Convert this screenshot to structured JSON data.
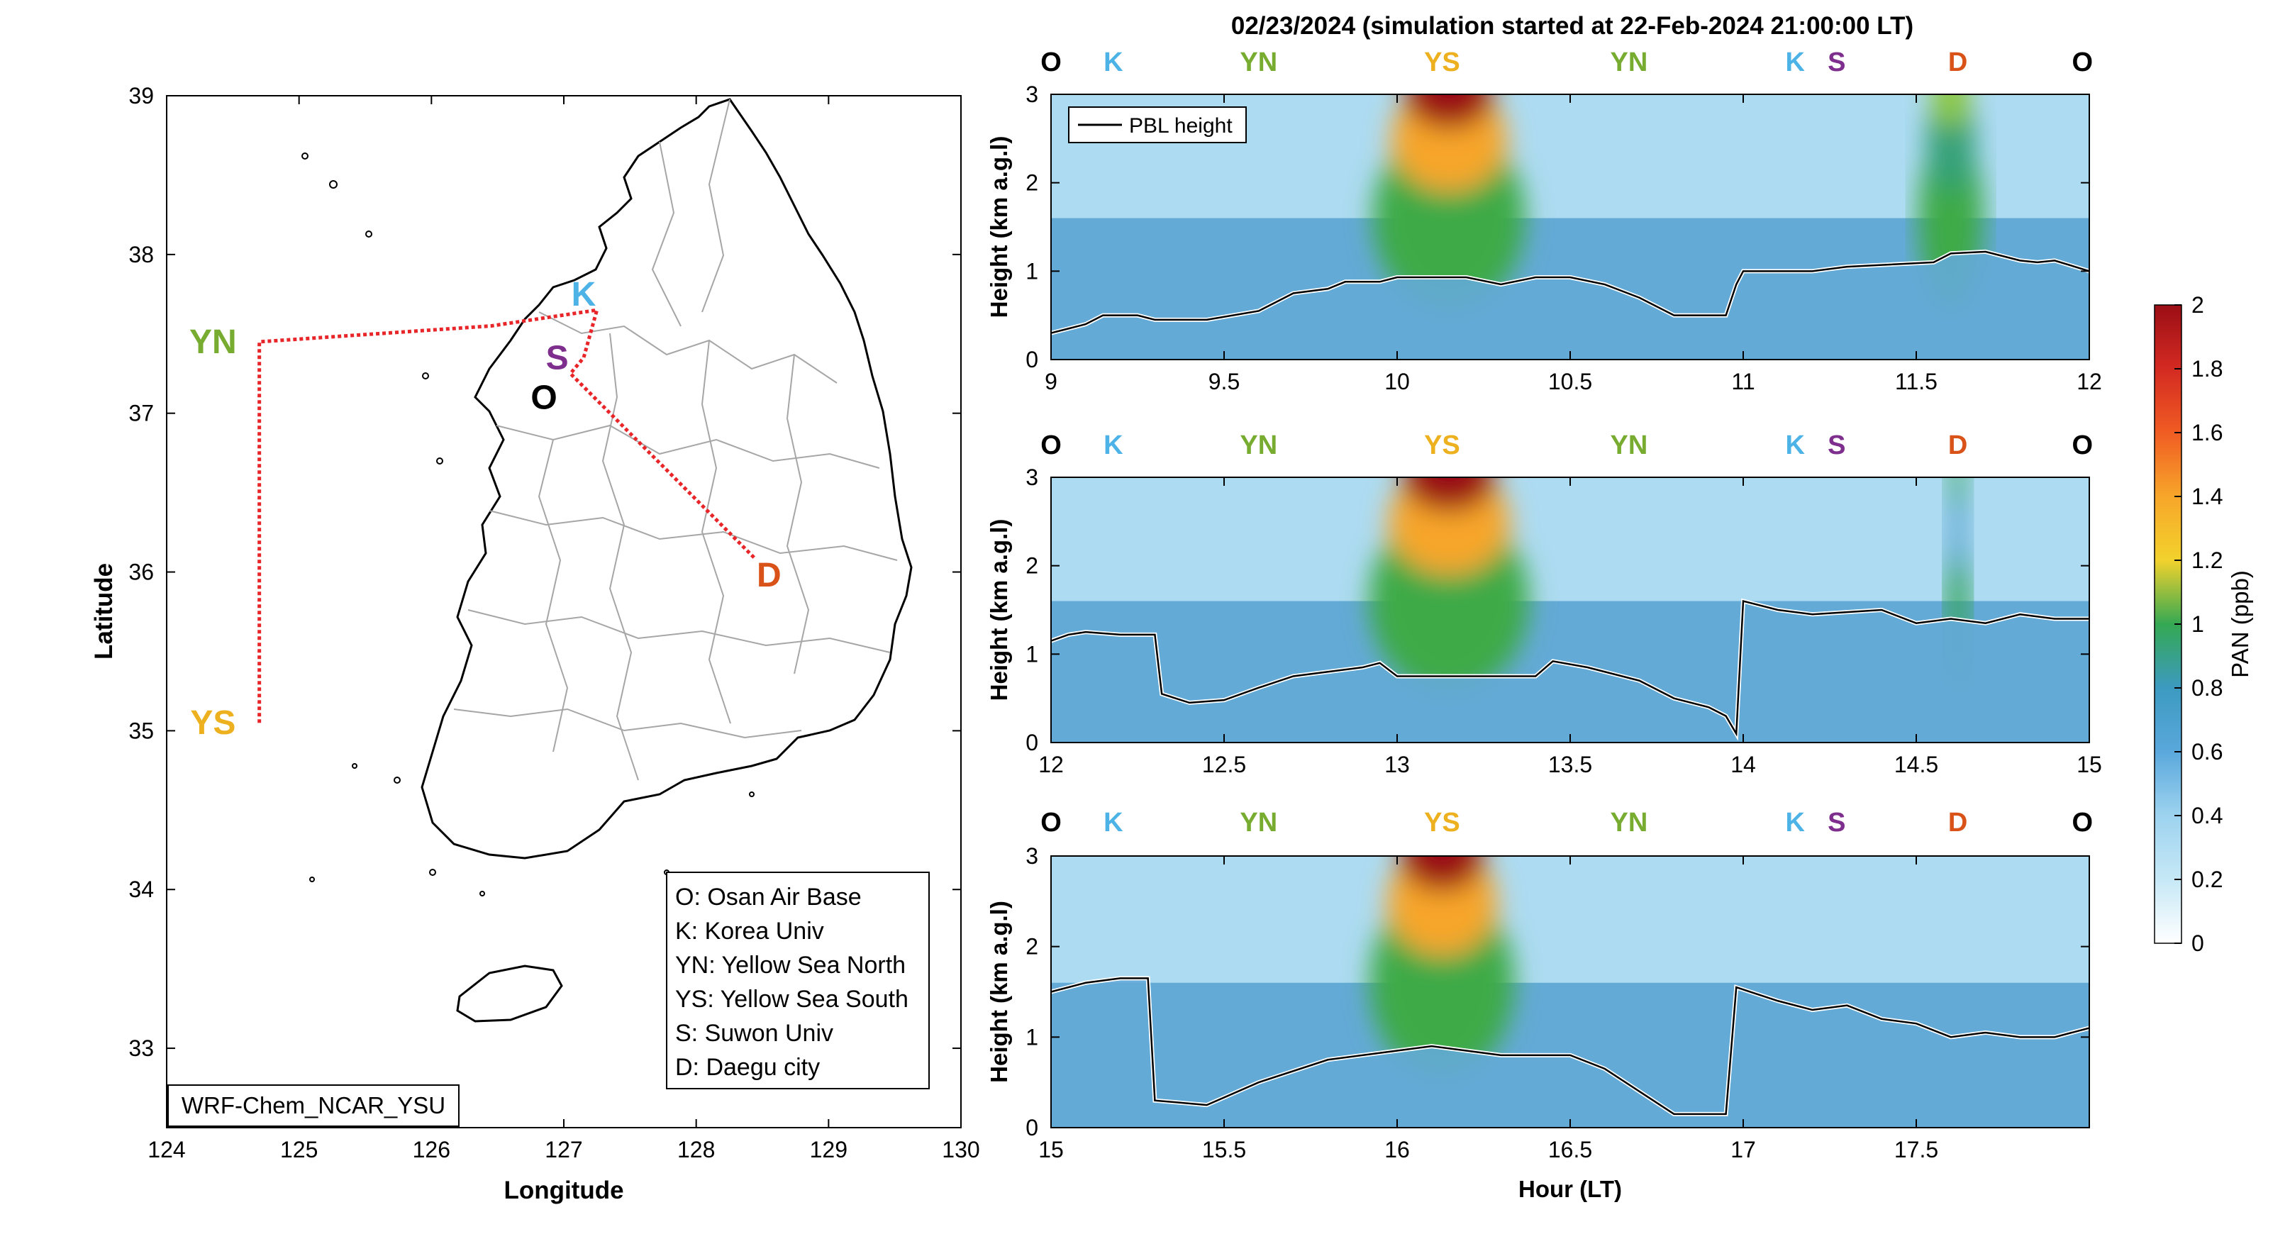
{
  "figure": {
    "title": "02/23/2024 (simulation started at 22-Feb-2024 21:00:00 LT)"
  },
  "map": {
    "xlabel": "Longitude",
    "ylabel": "Latitude",
    "xlim": [
      124,
      130
    ],
    "ylim": [
      32.5,
      39
    ],
    "xticks": [
      "124",
      "125",
      "126",
      "127",
      "128",
      "129",
      "130"
    ],
    "yticks": [
      "33",
      "34",
      "35",
      "36",
      "37",
      "38",
      "39"
    ],
    "model_label": "WRF-Chem_NCAR_YSU",
    "route_color": "#e8262a",
    "route": [
      [
        124.7,
        35.05
      ],
      [
        124.7,
        37.45
      ],
      [
        126.45,
        37.55
      ],
      [
        127.25,
        37.65
      ],
      [
        127.15,
        37.35
      ],
      [
        127.05,
        37.25
      ],
      [
        128.45,
        36.08
      ]
    ],
    "sites": [
      {
        "code": "O",
        "lon": 126.85,
        "lat": 37.1,
        "color": "#000000"
      },
      {
        "code": "K",
        "lon": 127.15,
        "lat": 37.75,
        "color": "#4db3e6"
      },
      {
        "code": "S",
        "lon": 126.95,
        "lat": 37.35,
        "color": "#7e2f8e"
      },
      {
        "code": "YN",
        "lon": 124.35,
        "lat": 37.45,
        "color": "#77ac30"
      },
      {
        "code": "YS",
        "lon": 124.35,
        "lat": 35.05,
        "color": "#edb120"
      },
      {
        "code": "D",
        "lon": 128.55,
        "lat": 35.98,
        "color": "#d95319"
      }
    ],
    "legend": [
      "O: Osan Air Base",
      "K: Korea Univ",
      "YN: Yellow Sea North",
      "YS: Yellow Sea South",
      "S: Suwon Univ",
      "D: Daegu city"
    ]
  },
  "chart_data": [
    {
      "type": "heatmap",
      "xlim": [
        9,
        12
      ],
      "ylim": [
        0,
        3
      ],
      "xticks": [
        "9",
        "9.5",
        "10",
        "10.5",
        "11",
        "11.5",
        "12"
      ],
      "yticks": [
        "0",
        "1",
        "2",
        "3"
      ],
      "ylabel": "Height (km a.g.l)",
      "legend": {
        "label": "PBL height",
        "position": "top-left"
      },
      "top_labels": [
        {
          "code": "O",
          "x": 9.0,
          "color": "#000000"
        },
        {
          "code": "K",
          "x": 9.18,
          "color": "#4db3e6"
        },
        {
          "code": "YN",
          "x": 9.6,
          "color": "#77ac30"
        },
        {
          "code": "YS",
          "x": 10.13,
          "color": "#edb120"
        },
        {
          "code": "YN",
          "x": 10.67,
          "color": "#77ac30"
        },
        {
          "code": "K",
          "x": 11.15,
          "color": "#4db3e6"
        },
        {
          "code": "S",
          "x": 11.27,
          "color": "#7e2f8e"
        },
        {
          "code": "D",
          "x": 11.62,
          "color": "#d95319"
        },
        {
          "code": "O",
          "x": 11.98,
          "color": "#000000"
        }
      ],
      "pbl": [
        [
          9.0,
          0.3
        ],
        [
          9.05,
          0.35
        ],
        [
          9.1,
          0.4
        ],
        [
          9.15,
          0.5
        ],
        [
          9.25,
          0.5
        ],
        [
          9.3,
          0.45
        ],
        [
          9.45,
          0.45
        ],
        [
          9.6,
          0.55
        ],
        [
          9.65,
          0.65
        ],
        [
          9.7,
          0.75
        ],
        [
          9.8,
          0.8
        ],
        [
          9.85,
          0.88
        ],
        [
          9.95,
          0.88
        ],
        [
          10.0,
          0.93
        ],
        [
          10.2,
          0.93
        ],
        [
          10.3,
          0.85
        ],
        [
          10.4,
          0.93
        ],
        [
          10.5,
          0.93
        ],
        [
          10.6,
          0.85
        ],
        [
          10.7,
          0.7
        ],
        [
          10.8,
          0.5
        ],
        [
          10.95,
          0.5
        ],
        [
          10.98,
          0.85
        ],
        [
          11.0,
          1.0
        ],
        [
          11.2,
          1.0
        ],
        [
          11.3,
          1.05
        ],
        [
          11.4,
          1.07
        ],
        [
          11.55,
          1.1
        ],
        [
          11.6,
          1.2
        ],
        [
          11.7,
          1.22
        ],
        [
          11.8,
          1.12
        ],
        [
          11.85,
          1.1
        ],
        [
          11.9,
          1.12
        ],
        [
          12.0,
          1.0
        ]
      ],
      "hotspots": [
        {
          "x": 10.15,
          "w": 0.4,
          "peak": 2.0
        },
        {
          "x": 11.6,
          "w": 0.17,
          "peak": 1.0
        }
      ]
    },
    {
      "type": "heatmap",
      "xlim": [
        12,
        15
      ],
      "ylim": [
        0,
        3
      ],
      "xticks": [
        "12",
        "12.5",
        "13",
        "13.5",
        "14",
        "14.5",
        "15"
      ],
      "yticks": [
        "0",
        "1",
        "2",
        "3"
      ],
      "ylabel": "Height (km a.g.l)",
      "top_labels": [
        {
          "code": "O",
          "x": 12.0,
          "color": "#000000"
        },
        {
          "code": "K",
          "x": 12.18,
          "color": "#4db3e6"
        },
        {
          "code": "YN",
          "x": 12.6,
          "color": "#77ac30"
        },
        {
          "code": "YS",
          "x": 13.13,
          "color": "#edb120"
        },
        {
          "code": "YN",
          "x": 13.67,
          "color": "#77ac30"
        },
        {
          "code": "K",
          "x": 14.15,
          "color": "#4db3e6"
        },
        {
          "code": "S",
          "x": 14.27,
          "color": "#7e2f8e"
        },
        {
          "code": "D",
          "x": 14.62,
          "color": "#d95319"
        },
        {
          "code": "O",
          "x": 14.98,
          "color": "#000000"
        }
      ],
      "pbl": [
        [
          12.0,
          1.15
        ],
        [
          12.05,
          1.22
        ],
        [
          12.1,
          1.25
        ],
        [
          12.2,
          1.22
        ],
        [
          12.3,
          1.22
        ],
        [
          12.32,
          0.55
        ],
        [
          12.4,
          0.45
        ],
        [
          12.5,
          0.48
        ],
        [
          12.6,
          0.62
        ],
        [
          12.7,
          0.75
        ],
        [
          12.8,
          0.8
        ],
        [
          12.9,
          0.85
        ],
        [
          12.95,
          0.9
        ],
        [
          13.0,
          0.75
        ],
        [
          13.4,
          0.75
        ],
        [
          13.45,
          0.92
        ],
        [
          13.55,
          0.85
        ],
        [
          13.7,
          0.7
        ],
        [
          13.8,
          0.5
        ],
        [
          13.9,
          0.4
        ],
        [
          13.95,
          0.3
        ],
        [
          13.98,
          0.1
        ],
        [
          14.0,
          1.6
        ],
        [
          14.1,
          1.5
        ],
        [
          14.2,
          1.45
        ],
        [
          14.4,
          1.5
        ],
        [
          14.5,
          1.35
        ],
        [
          14.6,
          1.4
        ],
        [
          14.7,
          1.35
        ],
        [
          14.8,
          1.45
        ],
        [
          14.9,
          1.4
        ],
        [
          15.0,
          1.4
        ]
      ],
      "hotspots": [
        {
          "x": 13.15,
          "w": 0.42,
          "peak": 2.0
        },
        {
          "x": 14.62,
          "w": 0.06,
          "peak": 0.75
        }
      ]
    },
    {
      "type": "heatmap",
      "xlim": [
        15,
        18
      ],
      "ylim": [
        0,
        3
      ],
      "xticks": [
        "15",
        "15.5",
        "16",
        "16.5",
        "17",
        "17.5"
      ],
      "yticks": [
        "0",
        "1",
        "2",
        "3"
      ],
      "xlabel": "Hour (LT)",
      "ylabel": "Height (km a.g.l)",
      "top_labels": [
        {
          "code": "O",
          "x": 15.0,
          "color": "#000000"
        },
        {
          "code": "K",
          "x": 15.18,
          "color": "#4db3e6"
        },
        {
          "code": "YN",
          "x": 15.6,
          "color": "#77ac30"
        },
        {
          "code": "YS",
          "x": 16.13,
          "color": "#edb120"
        },
        {
          "code": "YN",
          "x": 16.67,
          "color": "#77ac30"
        },
        {
          "code": "K",
          "x": 17.15,
          "color": "#4db3e6"
        },
        {
          "code": "S",
          "x": 17.27,
          "color": "#7e2f8e"
        },
        {
          "code": "D",
          "x": 17.62,
          "color": "#d95319"
        },
        {
          "code": "O",
          "x": 17.98,
          "color": "#000000"
        }
      ],
      "pbl": [
        [
          15.0,
          1.5
        ],
        [
          15.05,
          1.55
        ],
        [
          15.1,
          1.6
        ],
        [
          15.2,
          1.65
        ],
        [
          15.28,
          1.65
        ],
        [
          15.3,
          0.3
        ],
        [
          15.45,
          0.25
        ],
        [
          15.6,
          0.5
        ],
        [
          15.8,
          0.75
        ],
        [
          16.0,
          0.85
        ],
        [
          16.1,
          0.9
        ],
        [
          16.2,
          0.85
        ],
        [
          16.3,
          0.8
        ],
        [
          16.5,
          0.8
        ],
        [
          16.6,
          0.65
        ],
        [
          16.7,
          0.4
        ],
        [
          16.8,
          0.15
        ],
        [
          16.95,
          0.15
        ],
        [
          16.98,
          1.55
        ],
        [
          17.1,
          1.4
        ],
        [
          17.2,
          1.3
        ],
        [
          17.3,
          1.35
        ],
        [
          17.4,
          1.2
        ],
        [
          17.5,
          1.15
        ],
        [
          17.6,
          1.0
        ],
        [
          17.7,
          1.05
        ],
        [
          17.8,
          1.0
        ],
        [
          17.9,
          1.0
        ],
        [
          18.0,
          1.1
        ]
      ],
      "hotspots": [
        {
          "x": 16.13,
          "w": 0.38,
          "peak": 2.0
        }
      ]
    }
  ],
  "colorbar": {
    "label": "PAN (ppb)",
    "range": [
      0,
      2
    ],
    "ticks": [
      "0",
      "0.2",
      "0.4",
      "0.6",
      "0.8",
      "1",
      "1.2",
      "1.4",
      "1.6",
      "1.8",
      "2"
    ]
  }
}
